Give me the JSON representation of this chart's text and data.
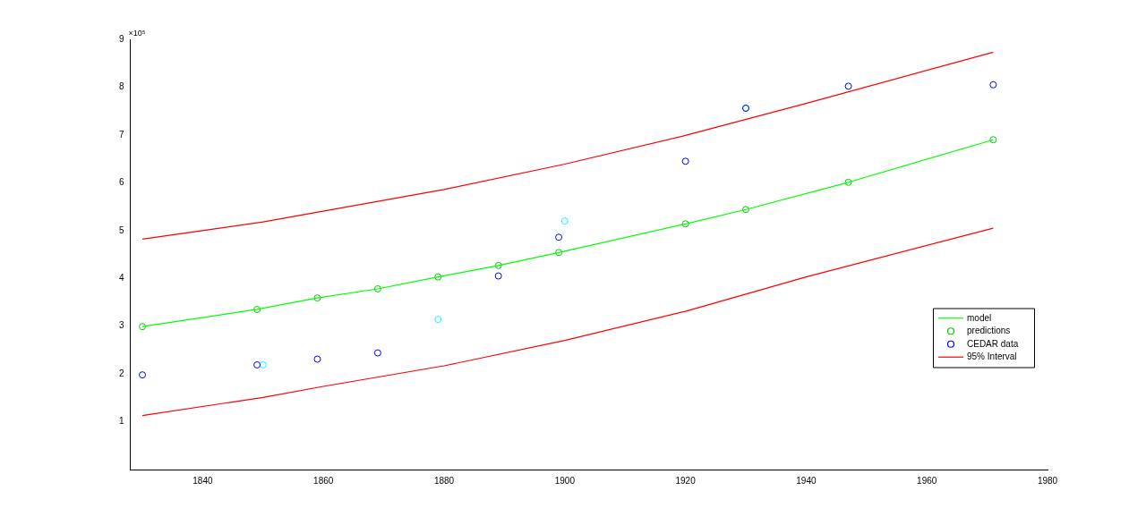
{
  "chart_data": {
    "type": "scatter",
    "annotations": [
      "×10⁵"
    ],
    "xlim": [
      1828,
      1980
    ],
    "xticks": [
      1840,
      1860,
      1880,
      1900,
      1920,
      1940,
      1960,
      1980
    ],
    "ylim": [
      0,
      9
    ],
    "yticks": [
      1,
      2,
      3,
      4,
      5,
      6,
      7,
      8,
      9
    ],
    "grid": false,
    "legend": "right",
    "series": [
      {
        "name": "model",
        "type": "line",
        "marker": "none",
        "color": "#00ff00",
        "x": [
          1830,
          1849,
          1859,
          1869,
          1879,
          1889,
          1899,
          1920,
          1930,
          1947,
          1971
        ],
        "values": [
          2.99,
          3.35,
          3.59,
          3.78,
          4.03,
          4.27,
          4.54,
          5.14,
          5.44,
          6.01,
          6.9
        ]
      },
      {
        "name": "predictions",
        "type": "scatter",
        "marker": "circle",
        "color": "#00cc00",
        "x": [
          1830,
          1849,
          1859,
          1869,
          1879,
          1889,
          1899,
          1920,
          1930,
          1947,
          1971
        ],
        "values": [
          2.99,
          3.35,
          3.59,
          3.78,
          4.03,
          4.27,
          4.54,
          5.14,
          5.44,
          6.01,
          6.9
        ]
      },
      {
        "name": "CEDAR data",
        "type": "scatter",
        "marker": "circle",
        "color": "#0000ff",
        "x": [
          1830,
          1849,
          1859,
          1869,
          1889,
          1899,
          1920,
          1930,
          1947,
          1971
        ],
        "values": [
          1.98,
          2.19,
          2.31,
          2.44,
          4.05,
          4.86,
          6.45,
          7.56,
          8.02,
          8.05
        ]
      },
      {
        "name": "95% Interval",
        "type": "line",
        "marker": "none",
        "color": "#ff0000",
        "x": [
          1830,
          1850,
          1880,
          1900,
          1920,
          1940,
          1971
        ],
        "values": [
          4.82,
          5.18,
          5.86,
          6.39,
          6.99,
          7.66,
          8.73
        ]
      },
      {
        "type": "line",
        "marker": "none",
        "color": "#ff0000",
        "x": [
          1830,
          1850,
          1860,
          1880,
          1900,
          1920,
          1940,
          1971
        ],
        "values": [
          1.13,
          1.51,
          1.74,
          2.17,
          2.7,
          3.31,
          4.03,
          5.05
        ]
      },
      {
        "type": "scatter",
        "marker": "circle",
        "color": "#00ffff",
        "x": [
          1850,
          1879,
          1900,
          1930
        ],
        "values": [
          2.19,
          3.14,
          5.2,
          7.56
        ]
      }
    ]
  }
}
